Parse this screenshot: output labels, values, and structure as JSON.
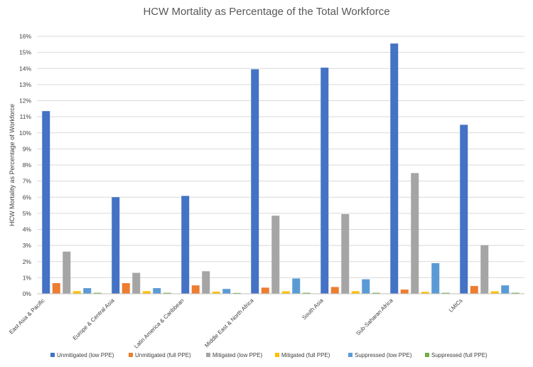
{
  "chart_data": {
    "type": "bar",
    "title": "HCW Mortality as Percentage of the Total Workforce",
    "xlabel": "",
    "ylabel": "HCW Mortality as Percentage of Workforce",
    "ylim": [
      0,
      16
    ],
    "yticks": [
      "0%",
      "1%",
      "2%",
      "3%",
      "4%",
      "5%",
      "6%",
      "7%",
      "8%",
      "9%",
      "10%",
      "11%",
      "12%",
      "13%",
      "14%",
      "15%",
      "16%"
    ],
    "grid": true,
    "legend_position": "bottom",
    "categories": [
      "East Asia & Pacific",
      "Europe & Central Asia",
      "Latin America & Caribbean",
      "Middle East & North Africa",
      "South Asia",
      "Sub-Saharan Africa",
      "LMICs"
    ],
    "series": [
      {
        "name": "Unmitigated (low PPE)",
        "color": "#4472C4",
        "values": [
          11.35,
          6.0,
          6.08,
          13.95,
          14.05,
          15.55,
          10.5
        ]
      },
      {
        "name": "Unmitigated (full PPE)",
        "color": "#ED7D31",
        "values": [
          0.66,
          0.66,
          0.52,
          0.38,
          0.42,
          0.26,
          0.48
        ]
      },
      {
        "name": "Mitigated (low PPE)",
        "color": "#A5A5A5",
        "values": [
          2.62,
          1.3,
          1.4,
          4.85,
          4.95,
          7.5,
          3.02
        ]
      },
      {
        "name": "Mitigated (full PPE)",
        "color": "#FFC000",
        "values": [
          0.16,
          0.16,
          0.13,
          0.15,
          0.16,
          0.12,
          0.15
        ]
      },
      {
        "name": "Suppressed (low PPE)",
        "color": "#5B9BD5",
        "values": [
          0.35,
          0.35,
          0.3,
          0.95,
          0.9,
          1.9,
          0.52
        ]
      },
      {
        "name": "Suppressed (full PPE)",
        "color": "#70AD47",
        "values": [
          0.06,
          0.06,
          0.05,
          0.06,
          0.06,
          0.06,
          0.06
        ]
      }
    ]
  }
}
